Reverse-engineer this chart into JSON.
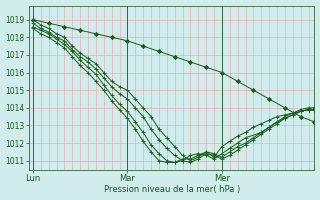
{
  "xlabel": "Pression niveau de la mer( hPa )",
  "bg_color": "#d0ecec",
  "grid_major_color": "#f0a0a0",
  "grid_minor_color": "#e8d8d8",
  "line_color": "#1a5c1a",
  "ylim": [
    1010.5,
    1019.8
  ],
  "xlim": [
    0,
    143
  ],
  "yticks": [
    1011,
    1012,
    1013,
    1014,
    1015,
    1016,
    1017,
    1018,
    1019
  ],
  "day_labels": [
    "Lun",
    "Mar",
    "Mer"
  ],
  "day_positions": [
    0,
    48,
    96
  ],
  "series_plain": [
    {
      "x": [
        0,
        4,
        8,
        12,
        16,
        20,
        24,
        28,
        32,
        36,
        40,
        44,
        48,
        52,
        56,
        60,
        64,
        68,
        72,
        76,
        80,
        84,
        88,
        92,
        96,
        100,
        104,
        108,
        112,
        116,
        120,
        124,
        128,
        132,
        136,
        140,
        143
      ],
      "y": [
        1019.0,
        1018.7,
        1018.5,
        1018.2,
        1018.0,
        1017.5,
        1017.1,
        1016.8,
        1016.5,
        1016.0,
        1015.5,
        1015.2,
        1015.0,
        1014.5,
        1014.0,
        1013.5,
        1012.8,
        1012.3,
        1011.8,
        1011.3,
        1011.0,
        1011.2,
        1011.5,
        1011.4,
        1011.2,
        1011.5,
        1011.8,
        1012.0,
        1012.3,
        1012.6,
        1012.9,
        1013.2,
        1013.5,
        1013.7,
        1013.9,
        1014.0,
        1014.0
      ]
    },
    {
      "x": [
        0,
        4,
        8,
        12,
        16,
        20,
        24,
        28,
        32,
        36,
        40,
        44,
        48,
        52,
        56,
        60,
        64,
        68,
        72,
        76,
        80,
        84,
        88,
        92,
        96,
        100,
        104,
        108,
        112,
        116,
        120,
        124,
        128,
        132,
        136,
        140,
        143
      ],
      "y": [
        1018.8,
        1018.5,
        1018.3,
        1018.0,
        1017.8,
        1017.3,
        1016.9,
        1016.6,
        1016.2,
        1015.7,
        1015.2,
        1014.8,
        1014.5,
        1014.0,
        1013.5,
        1012.8,
        1012.2,
        1011.7,
        1011.3,
        1011.0,
        1010.9,
        1011.1,
        1011.4,
        1011.3,
        1011.1,
        1011.3,
        1011.6,
        1011.9,
        1012.2,
        1012.5,
        1012.8,
        1013.1,
        1013.4,
        1013.6,
        1013.8,
        1013.9,
        1013.9
      ]
    },
    {
      "x": [
        0,
        4,
        8,
        12,
        16,
        20,
        24,
        28,
        32,
        36,
        40,
        44,
        48,
        52,
        56,
        60,
        64,
        68,
        72,
        76,
        80,
        84,
        88,
        92,
        96,
        100,
        104,
        108,
        116,
        120,
        124,
        128,
        132,
        136,
        140,
        143
      ],
      "y": [
        1018.6,
        1018.4,
        1018.2,
        1017.9,
        1017.6,
        1017.2,
        1016.7,
        1016.3,
        1015.9,
        1015.3,
        1014.7,
        1014.2,
        1013.8,
        1013.2,
        1012.6,
        1011.9,
        1011.4,
        1011.0,
        1010.9,
        1011.0,
        1011.3,
        1011.4,
        1011.3,
        1011.1,
        1011.4,
        1011.7,
        1012.0,
        1012.3,
        1012.6,
        1012.9,
        1013.2,
        1013.4,
        1013.6,
        1013.8,
        1013.9,
        1013.9
      ]
    },
    {
      "x": [
        0,
        4,
        8,
        12,
        16,
        20,
        24,
        28,
        32,
        36,
        40,
        44,
        48,
        52,
        56,
        60,
        64,
        68,
        72,
        76,
        80,
        84,
        88,
        92,
        96,
        100,
        104,
        108,
        112,
        116,
        120,
        124,
        128,
        132,
        136,
        140,
        143
      ],
      "y": [
        1018.5,
        1018.2,
        1018.0,
        1017.7,
        1017.4,
        1016.9,
        1016.4,
        1016.0,
        1015.5,
        1015.0,
        1014.4,
        1013.9,
        1013.4,
        1012.8,
        1012.1,
        1011.5,
        1011.0,
        1010.9,
        1010.9,
        1011.1,
        1011.1,
        1011.3,
        1011.5,
        1011.2,
        1011.8,
        1012.1,
        1012.4,
        1012.6,
        1012.9,
        1013.1,
        1013.3,
        1013.5,
        1013.6,
        1013.7,
        1013.8,
        1013.9,
        1013.9
      ]
    }
  ],
  "series_diamond": {
    "x": [
      0,
      8,
      16,
      24,
      32,
      40,
      48,
      56,
      64,
      72,
      80,
      88,
      96,
      104,
      112,
      120,
      128,
      136,
      143
    ],
    "y": [
      1019.0,
      1018.8,
      1018.6,
      1018.4,
      1018.2,
      1018.0,
      1017.8,
      1017.5,
      1017.2,
      1016.9,
      1016.6,
      1016.3,
      1016.0,
      1015.5,
      1015.0,
      1014.5,
      1014.0,
      1013.5,
      1013.2
    ]
  }
}
